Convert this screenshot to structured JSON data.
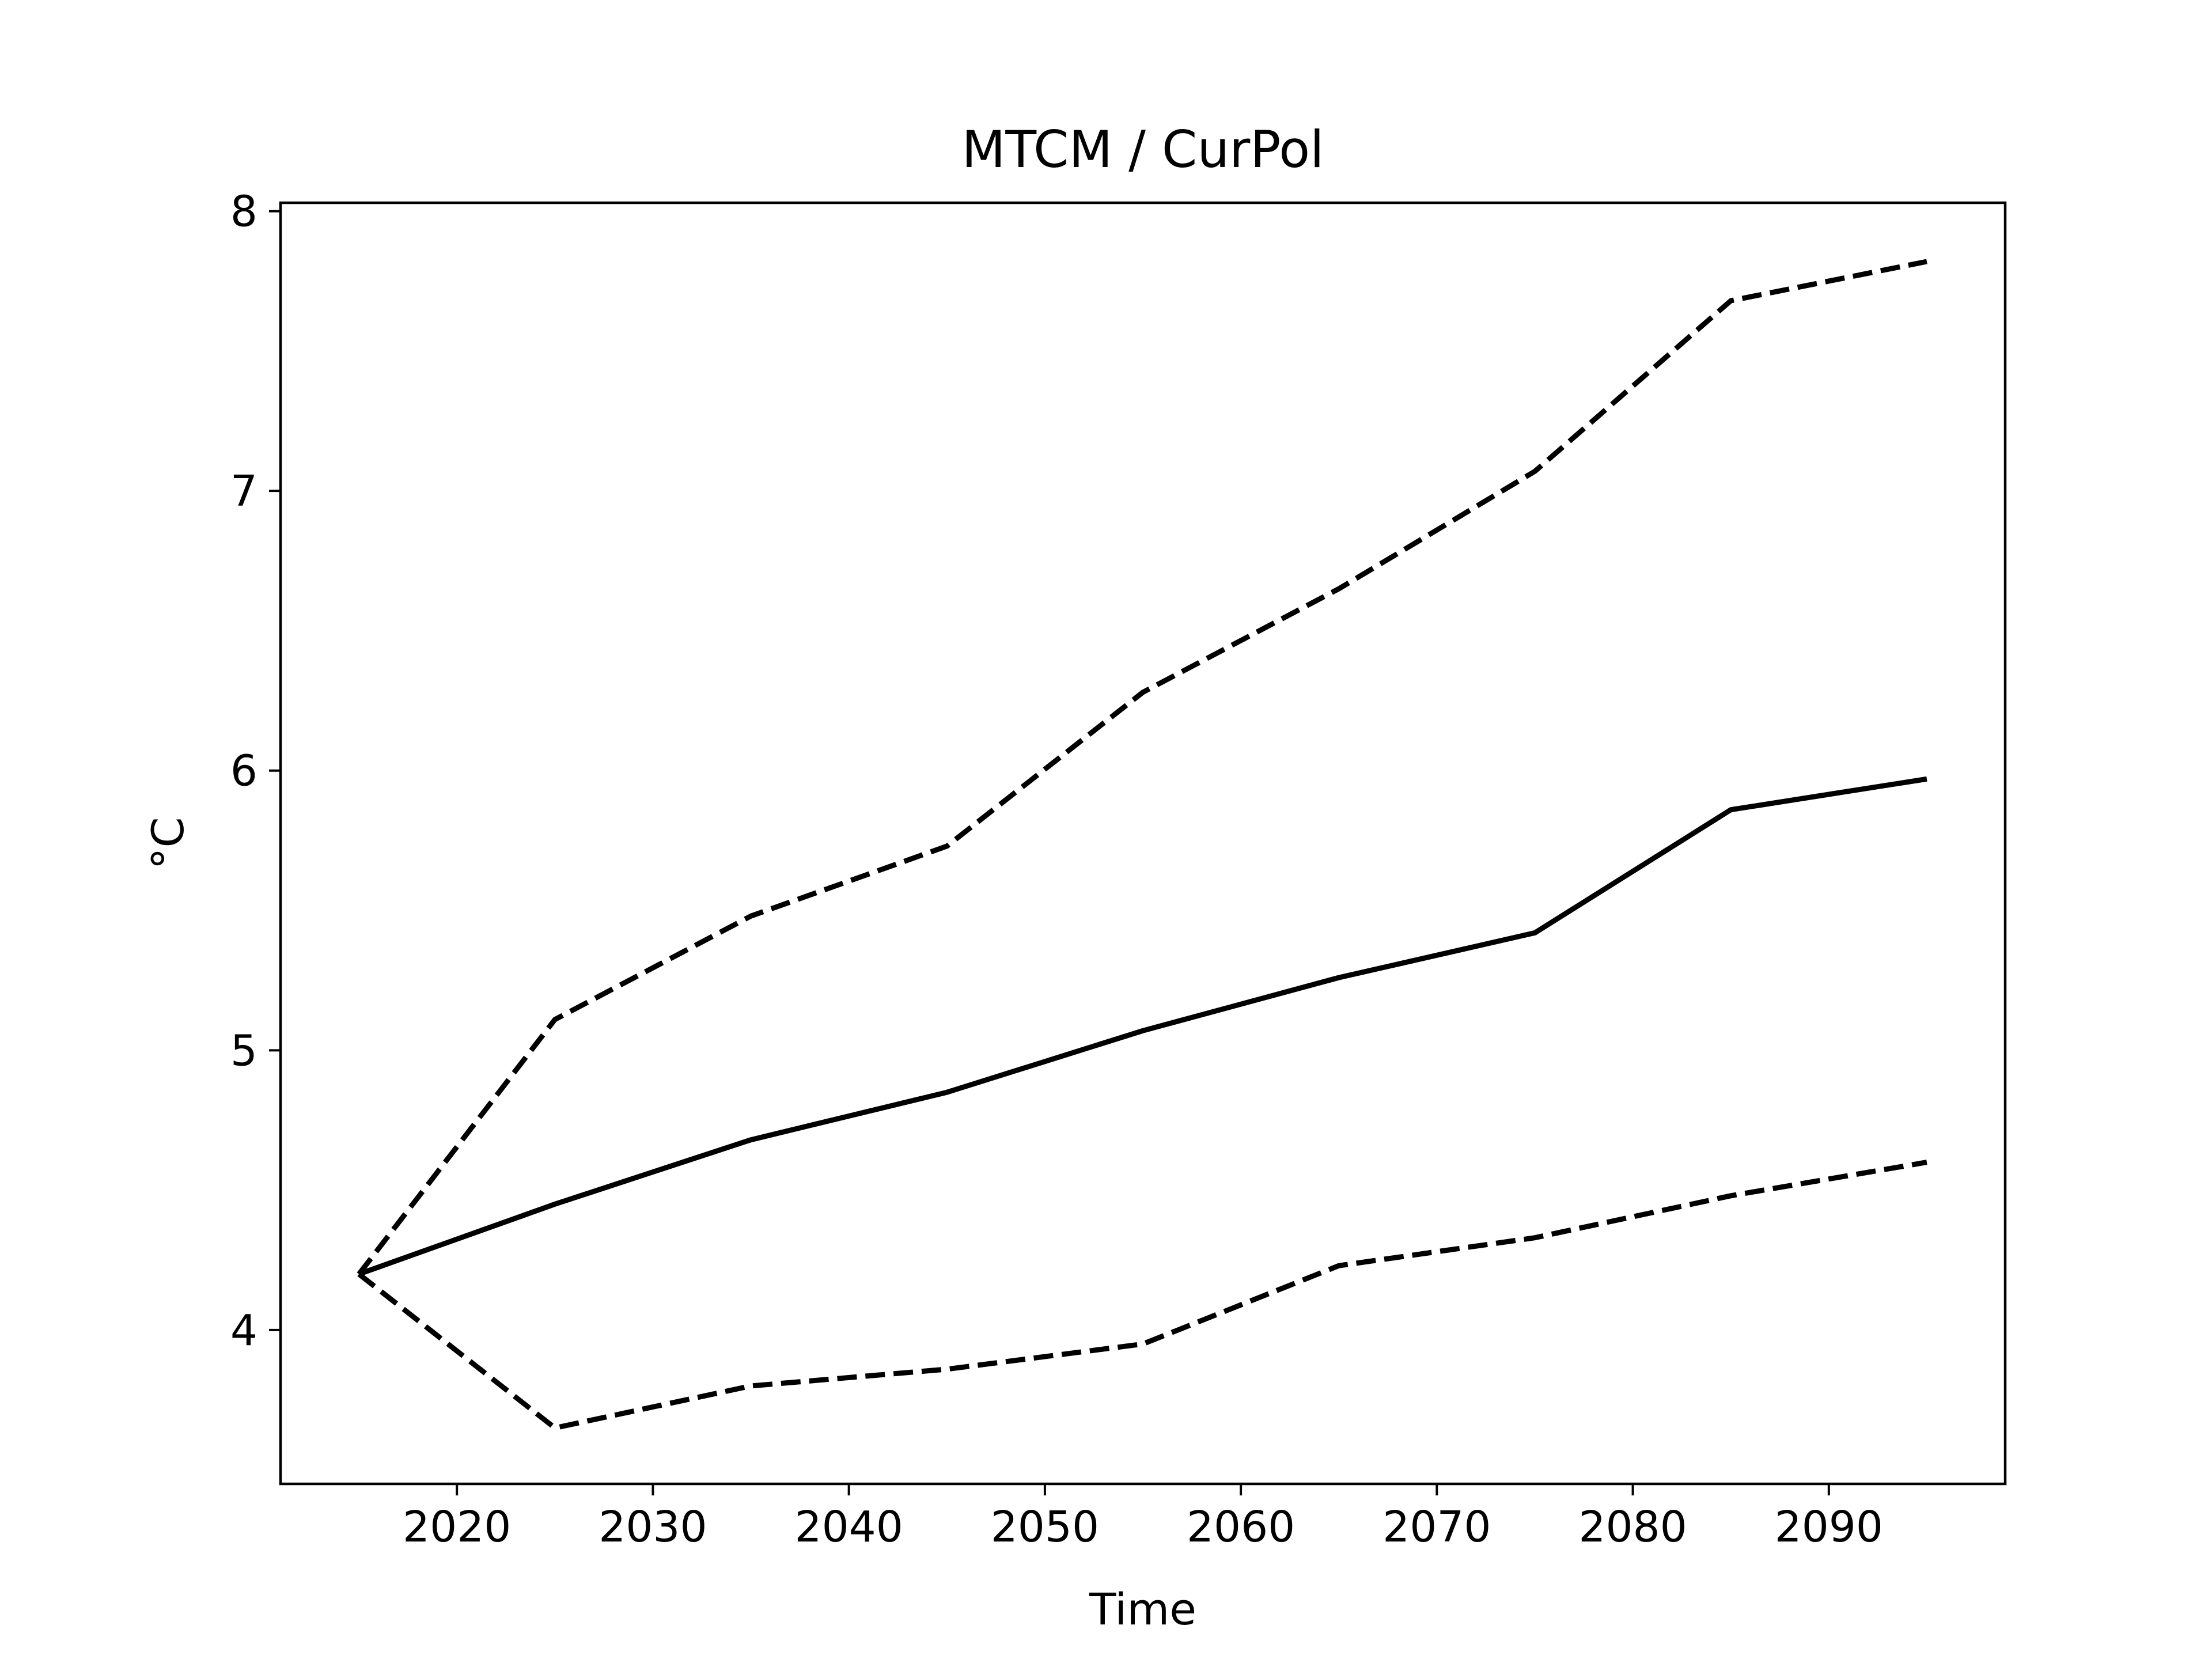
{
  "chart_data": {
    "type": "line",
    "title": "MTCM / CurPol",
    "xlabel": "Time",
    "ylabel": "°C",
    "x": [
      2015,
      2025,
      2035,
      2045,
      2055,
      2065,
      2075,
      2085,
      2095
    ],
    "xticks": [
      2020,
      2030,
      2040,
      2050,
      2060,
      2070,
      2080,
      2090
    ],
    "yticks": [
      4,
      5,
      6,
      7,
      8
    ],
    "xlim": [
      2011,
      2099
    ],
    "ylim": [
      3.45,
      8.03
    ],
    "grid": false,
    "series": [
      {
        "style": "solid",
        "color": "#000000",
        "values": [
          4.2,
          4.45,
          4.68,
          4.85,
          5.07,
          5.26,
          5.42,
          5.86,
          5.97
        ]
      },
      {
        "style": "dashed",
        "color": "#000000",
        "values": [
          4.2,
          5.11,
          5.48,
          5.73,
          6.28,
          6.65,
          7.07,
          7.68,
          7.82
        ]
      },
      {
        "style": "dashed",
        "color": "#000000",
        "values": [
          4.2,
          3.65,
          3.8,
          3.86,
          3.95,
          4.23,
          4.33,
          4.48,
          4.6
        ]
      }
    ]
  }
}
